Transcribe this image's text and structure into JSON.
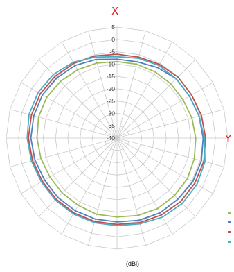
{
  "chart_data": {
    "type": "polar-line",
    "axis_top_label": "X",
    "axis_right_label": "Y",
    "unit_label": "(dBi)",
    "radial_ticks": [
      "5",
      "0",
      "-5",
      "-10",
      "-15",
      "-20",
      "-25",
      "-30",
      "-35",
      "-40"
    ],
    "rlim": [
      -40,
      5
    ],
    "angular_step_deg": 15,
    "grid": true,
    "series": [
      {
        "color": "#9bbb59",
        "values": [
          -9,
          -9,
          -9,
          -9,
          -9,
          -8.5,
          -8,
          -7.5,
          -7,
          -7,
          -7,
          -7.5,
          -8,
          -8,
          -8.5,
          -8.5,
          -8.5,
          -8,
          -7.5,
          -7,
          -7,
          -7.5,
          -8,
          -8.5
        ]
      },
      {
        "color": "#4f81bd",
        "values": [
          -8,
          -8,
          -7,
          -6,
          -6,
          -5.5,
          -5,
          -4.5,
          -4.5,
          -5,
          -5,
          -5.5,
          -6,
          -6,
          -6,
          -6,
          -6,
          -5.5,
          -5,
          -5,
          -5,
          -5.5,
          -6,
          -7
        ]
      },
      {
        "color": "#c0504d",
        "values": [
          -6,
          -6,
          -5.5,
          -5,
          -5,
          -4.5,
          -4,
          -3.5,
          -3.5,
          -3.5,
          -4,
          -4.5,
          -5,
          -5,
          -5,
          -5,
          -5,
          -4.5,
          -4,
          -4,
          -4,
          -4.5,
          -5,
          -5.5
        ]
      },
      {
        "color": "#4bacc6",
        "values": [
          -7,
          -6.5,
          -6,
          -6,
          -6,
          -5.5,
          -4.5,
          -3,
          -2.5,
          -2.5,
          -3,
          -4,
          -4.5,
          -4.5,
          -4.5,
          -4.5,
          -4.5,
          -4,
          -3.5,
          -3,
          -3,
          -3.5,
          -4.5,
          -6
        ]
      }
    ]
  }
}
